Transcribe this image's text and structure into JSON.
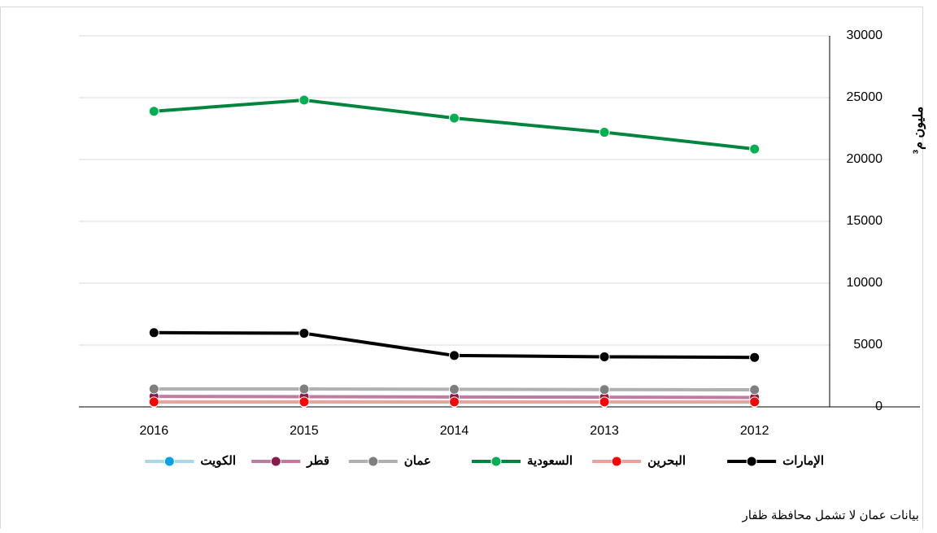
{
  "chart_data": {
    "type": "line",
    "y_label": "مليون م³",
    "note": "بيانات عمان لا تشمل محافظة ظفار",
    "categories": [
      "2016",
      "2015",
      "2014",
      "2013",
      "2012"
    ],
    "ylim": [
      0,
      30000
    ],
    "yticks": [
      0,
      5000,
      10000,
      15000,
      20000,
      25000,
      30000
    ],
    "grid": true,
    "series": [
      {
        "name": "الإمارات",
        "color": "#000000",
        "marker": "#000000",
        "values": [
          6000,
          5950,
          4150,
          4050,
          4000
        ]
      },
      {
        "name": "البحرين",
        "color": "#e6a59b",
        "marker": "#ff0000",
        "values": [
          400,
          400,
          400,
          400,
          400
        ]
      },
      {
        "name": "السعودية",
        "color": "#00853e",
        "marker": "#00b050",
        "values": [
          23900,
          24800,
          23350,
          22200,
          20850
        ]
      },
      {
        "name": "عمان",
        "color": "#b0b0b0",
        "marker": "#7f7f7f",
        "values": [
          1450,
          1450,
          1420,
          1400,
          1380
        ]
      },
      {
        "name": "قطر",
        "color": "#c27ba0",
        "marker": "#8b1a4a",
        "values": [
          850,
          820,
          800,
          780,
          760
        ]
      },
      {
        "name": "الكويت",
        "color": "#a6d8ea",
        "marker": "#00a2e8",
        "values": [
          380,
          380,
          380,
          380,
          380
        ]
      }
    ]
  }
}
